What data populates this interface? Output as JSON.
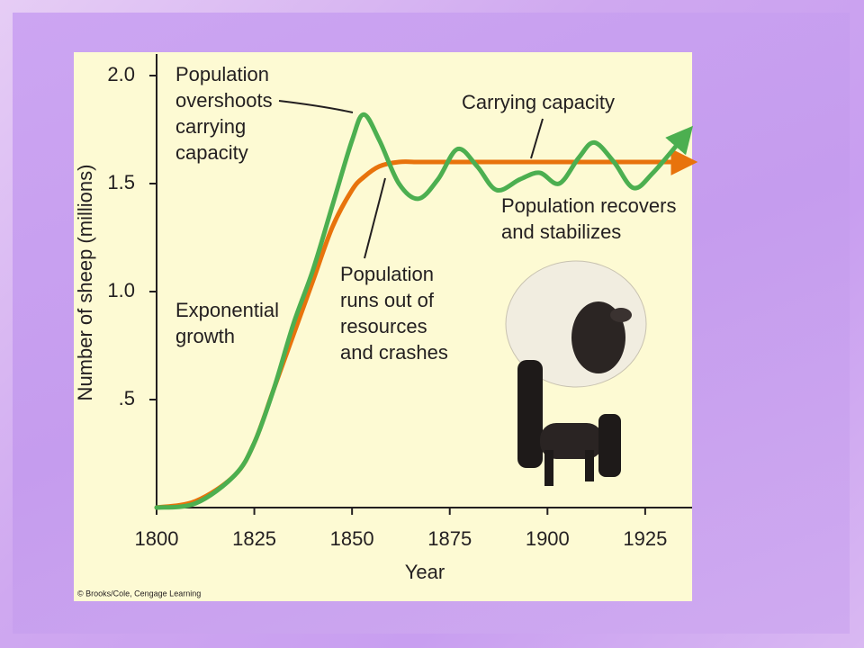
{
  "chart_data": {
    "type": "line",
    "xlabel": "Year",
    "ylabel": "Number of sheep (millions)",
    "x": [
      1800,
      1810,
      1820,
      1825,
      1830,
      1835,
      1840,
      1845,
      1850,
      1853,
      1857,
      1862,
      1867,
      1872,
      1877,
      1882,
      1887,
      1893,
      1898,
      1903,
      1908,
      1912,
      1917,
      1922,
      1927,
      1935
    ],
    "series": [
      {
        "color": "#e8730c",
        "values": [
          0,
          0.03,
          0.15,
          0.3,
          0.55,
          0.8,
          1.05,
          1.3,
          1.47,
          1.53,
          1.58,
          1.6,
          1.6,
          1.6,
          1.6,
          1.6,
          1.6,
          1.6,
          1.6,
          1.6,
          1.6,
          1.6,
          1.6,
          1.6,
          1.6,
          1.6
        ]
      },
      {
        "color": "#4caf50",
        "values": [
          0,
          0.02,
          0.15,
          0.3,
          0.55,
          0.85,
          1.1,
          1.4,
          1.7,
          1.82,
          1.7,
          1.5,
          1.43,
          1.52,
          1.66,
          1.58,
          1.47,
          1.52,
          1.55,
          1.5,
          1.62,
          1.69,
          1.6,
          1.48,
          1.55,
          1.72
        ]
      }
    ],
    "xlim": [
      1800,
      1937
    ],
    "ylim": [
      0,
      2.0
    ],
    "xticks": [
      1800,
      1825,
      1850,
      1875,
      1900,
      1925
    ],
    "yticks": [
      {
        "value": 0.5,
        "label": ".5"
      },
      {
        "value": 1.0,
        "label": "1.0"
      },
      {
        "value": 1.5,
        "label": "1.5"
      },
      {
        "value": 2.0,
        "label": "2.0"
      }
    ]
  },
  "annotations": [
    [
      "Population",
      "overshoots",
      "carrying",
      "capacity"
    ],
    [
      "Carrying capacity"
    ],
    [
      "Population recovers",
      "and stabilizes"
    ],
    [
      "Population",
      "runs out of",
      "resources",
      "and crashes"
    ],
    [
      "Exponential",
      "growth"
    ]
  ],
  "copyright": "© Brooks/Cole, Cengage Learning"
}
